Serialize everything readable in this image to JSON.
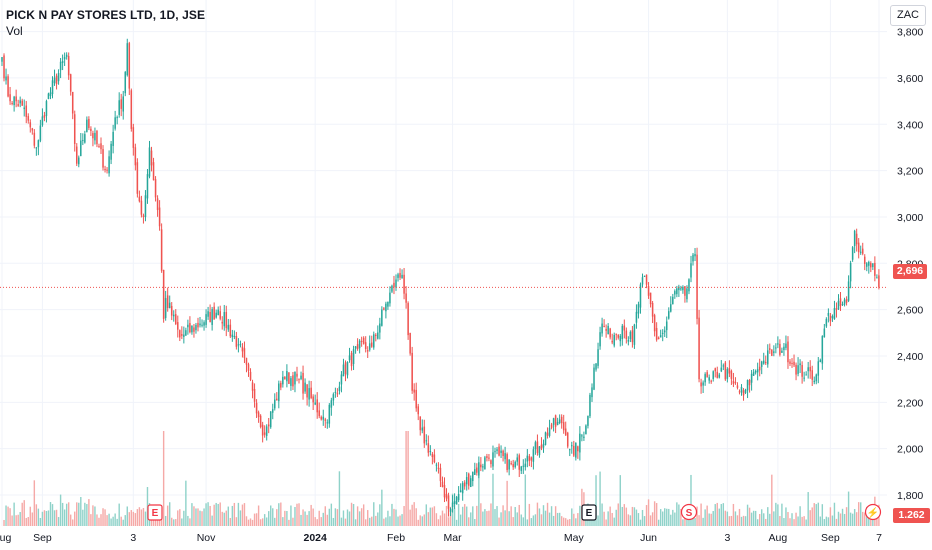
{
  "header": {
    "symbol_title": "PICK N PAY STORES LTD, 1D, JSE",
    "volume_label": "Vol",
    "currency": "ZAC"
  },
  "last_price_label": "2,696",
  "volume_value_label": "1.262 M",
  "event_markers": [
    {
      "label": "E",
      "type": "earnings",
      "date": "2023-10-09",
      "color": "#f23645"
    },
    {
      "label": "E",
      "type": "earnings",
      "date": "2024-05-27",
      "color": "#131722"
    },
    {
      "label": "S",
      "type": "split",
      "date": "2024-07-01",
      "color": "#f23645"
    },
    {
      "label": "⚡",
      "type": "dividend",
      "date": "2024-10-09",
      "color": "#f23645"
    }
  ],
  "colors": {
    "up": "#26a69a",
    "down": "#ef5350",
    "up_volume": "#8fd2c9",
    "down_volume": "#f5a9a7",
    "grid": "#f0f3fa",
    "axis_text": "#131722",
    "last_price_line": "#ef5350"
  },
  "chart_data": {
    "type": "candlestick",
    "title": "PICK N PAY STORES LTD, 1D, JSE",
    "ylabel": "",
    "xlabel": "",
    "ylim": [
      1580,
      3850
    ],
    "y_ticks": [
      1800,
      2000,
      2200,
      2400,
      2600,
      2800,
      3000,
      3200,
      3400,
      3600,
      3800
    ],
    "y_tick_labels": [
      "1,800",
      "2,000",
      "2,200",
      "2,400",
      "2,600",
      "2,800",
      "3,000",
      "3,200",
      "3,400",
      "3,600",
      "3,800"
    ],
    "x_ticks": [
      "Aug",
      "Sep",
      "3",
      "Nov",
      "2024",
      "Feb",
      "Mar",
      "May",
      "Jun",
      "3",
      "Aug",
      "Sep",
      "7"
    ],
    "grid": true,
    "last_price": 2696,
    "anchors": [
      {
        "i": 0,
        "c": 3690
      },
      {
        "i": 3,
        "c": 3520
      },
      {
        "i": 10,
        "c": 3480
      },
      {
        "i": 17,
        "c": 3300
      },
      {
        "i": 22,
        "c": 3500
      },
      {
        "i": 32,
        "c": 3700
      },
      {
        "i": 37,
        "c": 3230
      },
      {
        "i": 42,
        "c": 3420
      },
      {
        "i": 52,
        "c": 3200
      },
      {
        "i": 56,
        "c": 3430
      },
      {
        "i": 60,
        "c": 3520
      },
      {
        "i": 62,
        "c": 3750
      },
      {
        "i": 64,
        "c": 3380
      },
      {
        "i": 67,
        "c": 3100
      },
      {
        "i": 70,
        "c": 3000
      },
      {
        "i": 73,
        "c": 3300
      },
      {
        "i": 78,
        "c": 2960
      },
      {
        "i": 80,
        "c": 2560
      },
      {
        "i": 81,
        "c": 2650
      },
      {
        "i": 88,
        "c": 2480
      },
      {
        "i": 98,
        "c": 2540
      },
      {
        "i": 107,
        "c": 2600
      },
      {
        "i": 117,
        "c": 2450
      },
      {
        "i": 124,
        "c": 2250
      },
      {
        "i": 130,
        "c": 2060
      },
      {
        "i": 139,
        "c": 2310
      },
      {
        "i": 147,
        "c": 2300
      },
      {
        "i": 154,
        "c": 2200
      },
      {
        "i": 160,
        "c": 2120
      },
      {
        "i": 168,
        "c": 2320
      },
      {
        "i": 176,
        "c": 2430
      },
      {
        "i": 183,
        "c": 2440
      },
      {
        "i": 189,
        "c": 2600
      },
      {
        "i": 195,
        "c": 2730
      },
      {
        "i": 198,
        "c": 2750
      },
      {
        "i": 200,
        "c": 2630
      },
      {
        "i": 203,
        "c": 2250
      },
      {
        "i": 207,
        "c": 2080
      },
      {
        "i": 212,
        "c": 1990
      },
      {
        "i": 217,
        "c": 1860
      },
      {
        "i": 222,
        "c": 1740
      },
      {
        "i": 227,
        "c": 1820
      },
      {
        "i": 233,
        "c": 1900
      },
      {
        "i": 240,
        "c": 1960
      },
      {
        "i": 246,
        "c": 1970
      },
      {
        "i": 253,
        "c": 1920
      },
      {
        "i": 260,
        "c": 1970
      },
      {
        "i": 266,
        "c": 2010
      },
      {
        "i": 271,
        "c": 2090
      },
      {
        "i": 277,
        "c": 2110
      },
      {
        "i": 283,
        "c": 1970
      },
      {
        "i": 289,
        "c": 2100
      },
      {
        "i": 293,
        "c": 2350
      },
      {
        "i": 297,
        "c": 2540
      },
      {
        "i": 301,
        "c": 2480
      },
      {
        "i": 307,
        "c": 2530
      },
      {
        "i": 312,
        "c": 2460
      },
      {
        "i": 317,
        "c": 2740
      },
      {
        "i": 320,
        "c": 2660
      },
      {
        "i": 324,
        "c": 2470
      },
      {
        "i": 328,
        "c": 2510
      },
      {
        "i": 333,
        "c": 2680
      },
      {
        "i": 338,
        "c": 2660
      },
      {
        "i": 343,
        "c": 2840
      },
      {
        "i": 345,
        "c": 2300
      },
      {
        "i": 351,
        "c": 2290
      },
      {
        "i": 356,
        "c": 2350
      },
      {
        "i": 362,
        "c": 2280
      },
      {
        "i": 367,
        "c": 2230
      },
      {
        "i": 372,
        "c": 2330
      },
      {
        "i": 377,
        "c": 2380
      },
      {
        "i": 382,
        "c": 2420
      },
      {
        "i": 387,
        "c": 2440
      },
      {
        "i": 392,
        "c": 2360
      },
      {
        "i": 398,
        "c": 2320
      },
      {
        "i": 403,
        "c": 2320
      },
      {
        "i": 408,
        "c": 2560
      },
      {
        "i": 413,
        "c": 2600
      },
      {
        "i": 418,
        "c": 2630
      },
      {
        "i": 422,
        "c": 2940
      },
      {
        "i": 425,
        "c": 2850
      },
      {
        "i": 428,
        "c": 2800
      },
      {
        "i": 431,
        "c": 2800
      },
      {
        "i": 434,
        "c": 2696
      }
    ]
  }
}
